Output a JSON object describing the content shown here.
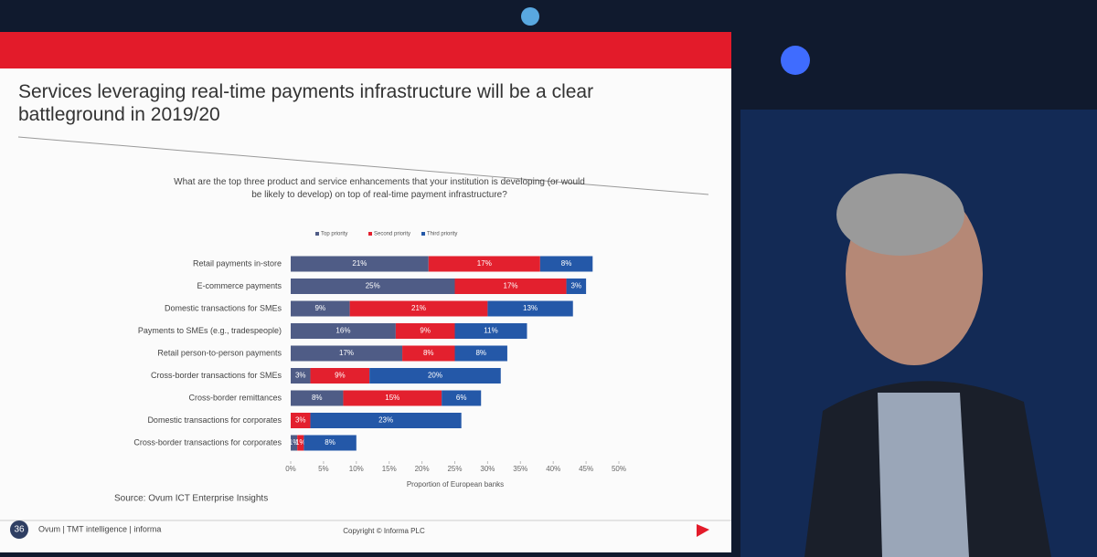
{
  "chart_data": {
    "type": "stacked-bar-horizontal",
    "title": "Services leveraging real-time payments infrastructure will be a clear battleground in 2019/20",
    "subtitle": "What are the top three product and service enhancements that your institution is developing (or would be likely to develop) on top of real-time payment infrastructure?",
    "categories": [
      "Retail payments in-store",
      "E-commerce payments",
      "Domestic transactions for SMEs",
      "Payments to SMEs (e.g., tradespeople)",
      "Retail person-to-person payments",
      "Cross-border transactions for SMEs",
      "Cross-border remittances",
      "Domestic transactions for corporates",
      "Cross-border transactions for corporates"
    ],
    "series": [
      {
        "name": "Top priority",
        "color": "#4f5c86",
        "values": [
          21,
          25,
          9,
          16,
          17,
          3,
          8,
          null,
          1
        ],
        "value_labels": [
          "21%",
          "25%",
          "9%",
          "16%",
          "17%",
          "3%",
          "8%",
          null,
          "1%"
        ]
      },
      {
        "name": "Second priority",
        "color": "#e3202e",
        "values": [
          17,
          17,
          21,
          9,
          8,
          9,
          15,
          3,
          1
        ],
        "value_labels": [
          "17%",
          "17%",
          "21%",
          "9%",
          "8%",
          "9%",
          "15%",
          "3%",
          "1%"
        ]
      },
      {
        "name": "Third priority",
        "color": "#2458a8",
        "values": [
          8,
          3,
          13,
          11,
          8,
          20,
          6,
          23,
          8
        ],
        "value_labels": [
          "8%",
          "3%",
          "13%",
          "11%",
          "8%",
          "20%",
          "6%",
          "23%",
          "8%"
        ]
      }
    ],
    "xlabel": "Proportion of European banks",
    "xlim": [
      0,
      50
    ],
    "xticks": [
      {
        "value": 0,
        "label": "0%"
      },
      {
        "value": 5,
        "label": "5%"
      },
      {
        "value": 10,
        "label": "10%"
      },
      {
        "value": 15,
        "label": "15%"
      },
      {
        "value": 20,
        "label": "20%"
      },
      {
        "value": 25,
        "label": "25%"
      },
      {
        "value": 30,
        "label": "30%"
      },
      {
        "value": 35,
        "label": "35%"
      },
      {
        "value": 40,
        "label": "40%"
      },
      {
        "value": 45,
        "label": "45%"
      },
      {
        "value": 50,
        "label": "50%"
      }
    ],
    "source": "Source: Ovum ICT Enterprise Insights",
    "page_number": "36",
    "footer_brand": "Ovum | TMT intelligence | informa",
    "copyright": "Copyright © Informa PLC"
  }
}
